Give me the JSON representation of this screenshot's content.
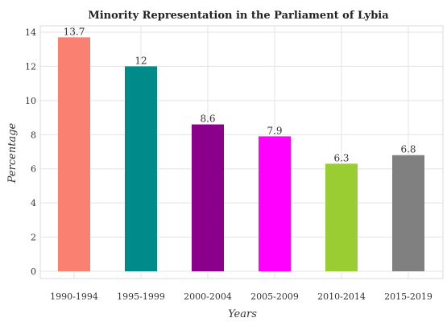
{
  "chart_data": {
    "type": "bar",
    "title": "Minority Representation in the Parliament of Lybia",
    "xlabel": "Years",
    "ylabel": "Percentage",
    "categories": [
      "1990-1994",
      "1995-1999",
      "2000-2004",
      "2005-2009",
      "2010-2014",
      "2015-2019"
    ],
    "values": [
      13.7,
      12,
      8.6,
      7.9,
      6.3,
      6.8
    ],
    "value_labels": [
      "13.7",
      "12",
      "8.6",
      "7.9",
      "6.3",
      "6.8"
    ],
    "colors": [
      "#fa8072",
      "#008b8b",
      "#8b008b",
      "#ff00ff",
      "#9acd32",
      "#808080"
    ],
    "ylim": [
      0,
      14
    ],
    "yticks": [
      0,
      2,
      4,
      6,
      8,
      10,
      12,
      14
    ],
    "grid": true,
    "legend": "none"
  }
}
